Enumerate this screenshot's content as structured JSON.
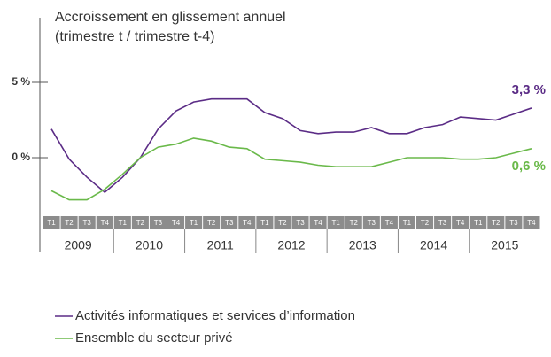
{
  "chart_data": {
    "type": "line",
    "title": "Accroissement en glissement annuel",
    "subtitle": "(trimestre t / trimestre t-4)",
    "categories": [
      "T1",
      "T2",
      "T3",
      "T4",
      "T1",
      "T2",
      "T3",
      "T4",
      "T1",
      "T2",
      "T3",
      "T4",
      "T1",
      "T2",
      "T3",
      "T4",
      "T1",
      "T2",
      "T3",
      "T4",
      "T1",
      "T2",
      "T3",
      "T4",
      "T1",
      "T2",
      "T3",
      "T4"
    ],
    "years": [
      "2009",
      "2010",
      "2011",
      "2012",
      "2013",
      "2014",
      "2015"
    ],
    "series": [
      {
        "name": "Activités informatiques et services d’information",
        "color": "#5b2c86",
        "values": [
          1.9,
          -0.1,
          -1.3,
          -2.3,
          -1.3,
          0,
          1.9,
          3.1,
          3.7,
          3.9,
          3.9,
          3.9,
          3.0,
          2.6,
          1.8,
          1.6,
          1.7,
          1.7,
          2.0,
          1.6,
          1.6,
          2.0,
          2.2,
          2.7,
          2.6,
          2.5,
          2.9,
          3.3
        ]
      },
      {
        "name": "Ensemble du secteur privé",
        "color": "#6ab94a",
        "values": [
          -2.2,
          -2.8,
          -2.8,
          -2.1,
          -1.1,
          0,
          0.7,
          0.9,
          1.3,
          1.1,
          0.7,
          0.6,
          -0.1,
          -0.2,
          -0.3,
          -0.5,
          -0.6,
          -0.6,
          -0.6,
          -0.3,
          0,
          0,
          0,
          -0.1,
          -0.1,
          0,
          0.3,
          0.6
        ]
      }
    ],
    "annotations": [
      "3,3 %",
      "0,6 %"
    ],
    "ylim": [
      -3.65,
      9.3
    ],
    "yticks": [
      {
        "value": 5,
        "label": "5 %"
      },
      {
        "value": 0,
        "label": "0 %"
      }
    ]
  }
}
